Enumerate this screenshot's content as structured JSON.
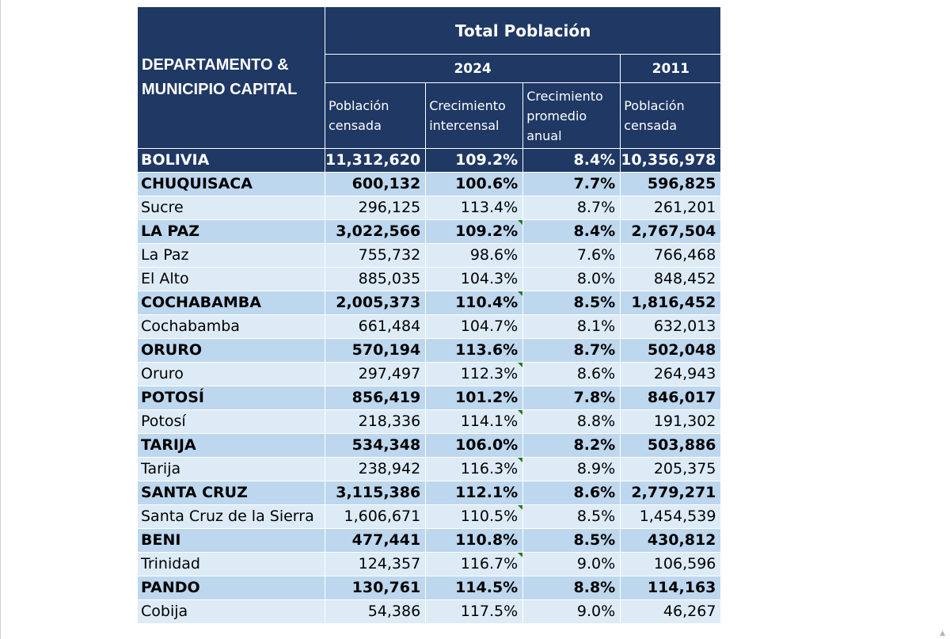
{
  "header": {
    "dept_label": "DEPARTAMENTO & MUNICIPIO CAPITAL",
    "group_label": "Total Población",
    "year_2024": "2024",
    "year_2011": "2011",
    "col_pop_2024": "Población censada",
    "col_growth": "Crecimiento intercensal",
    "col_annual": "Crecimiento promedio anual",
    "col_pop_2011": "Población censada"
  },
  "rows": [
    {
      "name": "BOLIVIA",
      "type": "total",
      "pop2024": "11,312,620",
      "growth": "109.2%",
      "annual": "8.4%",
      "pop2011": "10,356,978"
    },
    {
      "name": "CHUQUISACA",
      "type": "dept",
      "pop2024": "600,132",
      "growth": "100.6%",
      "annual": "7.7%",
      "pop2011": "596,825"
    },
    {
      "name": "Sucre",
      "type": "city",
      "pop2024": "296,125",
      "growth": "113.4%",
      "annual": "8.7%",
      "pop2011": "261,201"
    },
    {
      "name": "LA PAZ",
      "type": "dept",
      "pop2024": "3,022,566",
      "growth": "109.2%",
      "annual": "8.4%",
      "pop2011": "2,767,504"
    },
    {
      "name": "La Paz",
      "type": "city",
      "pop2024": "755,732",
      "growth": "98.6%",
      "annual": "7.6%",
      "pop2011": "766,468"
    },
    {
      "name": "El Alto",
      "type": "city",
      "pop2024": "885,035",
      "growth": "104.3%",
      "annual": "8.0%",
      "pop2011": "848,452"
    },
    {
      "name": "COCHABAMBA",
      "type": "dept",
      "pop2024": "2,005,373",
      "growth": "110.4%",
      "annual": "8.5%",
      "pop2011": "1,816,452"
    },
    {
      "name": "Cochabamba",
      "type": "city",
      "pop2024": "661,484",
      "growth": "104.7%",
      "annual": "8.1%",
      "pop2011": "632,013"
    },
    {
      "name": "ORURO",
      "type": "dept",
      "pop2024": "570,194",
      "growth": "113.6%",
      "annual": "8.7%",
      "pop2011": "502,048"
    },
    {
      "name": "Oruro",
      "type": "city",
      "pop2024": "297,497",
      "growth": "112.3%",
      "annual": "8.6%",
      "pop2011": "264,943"
    },
    {
      "name": "POTOSÍ",
      "type": "dept",
      "pop2024": "856,419",
      "growth": "101.2%",
      "annual": "7.8%",
      "pop2011": "846,017"
    },
    {
      "name": "Potosí",
      "type": "city",
      "pop2024": "218,336",
      "growth": "114.1%",
      "annual": "8.8%",
      "pop2011": "191,302"
    },
    {
      "name": "TARIJA",
      "type": "dept",
      "pop2024": "534,348",
      "growth": "106.0%",
      "annual": "8.2%",
      "pop2011": "503,886"
    },
    {
      "name": "Tarija",
      "type": "city",
      "pop2024": "238,942",
      "growth": "116.3%",
      "annual": "8.9%",
      "pop2011": "205,375"
    },
    {
      "name": "SANTA CRUZ",
      "type": "dept",
      "pop2024": "3,115,386",
      "growth": "112.1%",
      "annual": "8.6%",
      "pop2011": "2,779,271"
    },
    {
      "name": "Santa Cruz de la Sierra",
      "type": "city",
      "pop2024": "1,606,671",
      "growth": "110.5%",
      "annual": "8.5%",
      "pop2011": "1,454,539"
    },
    {
      "name": "BENI",
      "type": "dept",
      "pop2024": "477,441",
      "growth": "110.8%",
      "annual": "8.5%",
      "pop2011": "430,812"
    },
    {
      "name": "Trinidad",
      "type": "city",
      "pop2024": "124,357",
      "growth": "116.7%",
      "annual": "9.0%",
      "pop2011": "106,596"
    },
    {
      "name": "PANDO",
      "type": "dept",
      "pop2024": "130,761",
      "growth": "114.5%",
      "annual": "8.8%",
      "pop2011": "114,163"
    },
    {
      "name": "Cobija",
      "type": "city",
      "pop2024": "54,386",
      "growth": "117.5%",
      "annual": "9.0%",
      "pop2011": "46,267"
    }
  ],
  "flagged_growth_rows": [
    3,
    6,
    9,
    11,
    13,
    15,
    17
  ],
  "colors": {
    "header_bg": "#1f3864",
    "dept_bg": "#bdd7ee",
    "city_bg": "#ddebf7",
    "flag": "#1f7a1f"
  }
}
